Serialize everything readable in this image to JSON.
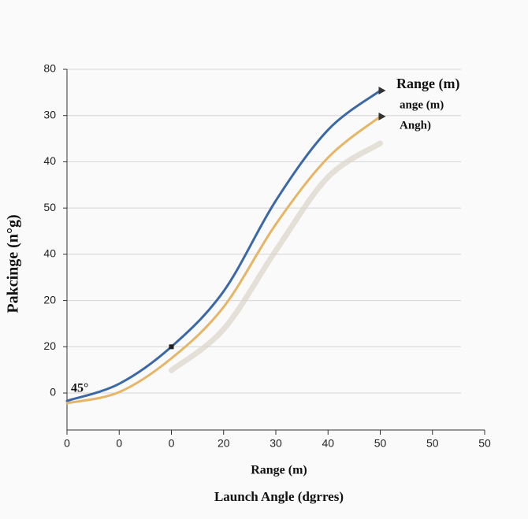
{
  "chart_data": {
    "type": "line",
    "y_label": "Pakcinge (n°g)",
    "x_label": "Range (m)",
    "subtitle": "Launch Angle (dgrres)",
    "annotation": "45°",
    "x": [
      0,
      1,
      2,
      3,
      4,
      5,
      6
    ],
    "xlim": [
      0,
      8
    ],
    "xticks": [
      {
        "value": 0,
        "label": "0"
      },
      {
        "value": 1,
        "label": "0"
      },
      {
        "value": 2,
        "label": "0"
      },
      {
        "value": 3,
        "label": "20"
      },
      {
        "value": 4,
        "label": "30"
      },
      {
        "value": 5,
        "label": "40"
      },
      {
        "value": 6,
        "label": "50"
      },
      {
        "value": 7,
        "label": "50"
      },
      {
        "value": 8,
        "label": "50"
      }
    ],
    "ylim": [
      -0.8,
      7
    ],
    "yticks": [
      {
        "value": 0,
        "label": "0"
      },
      {
        "value": 1,
        "label": "20"
      },
      {
        "value": 2,
        "label": "20"
      },
      {
        "value": 3,
        "label": "40"
      },
      {
        "value": 4,
        "label": "50"
      },
      {
        "value": 5,
        "label": "40"
      },
      {
        "value": 6,
        "label": "30"
      },
      {
        "value": 7,
        "label": "80"
      }
    ],
    "grid": true,
    "series": [
      {
        "name": "Range (m)",
        "color": "#3c68a6",
        "values": [
          -0.17,
          0.2,
          1.0,
          2.2,
          4.16,
          5.69,
          6.54
        ]
      },
      {
        "name": "ange (m)",
        "color": "#e6b566",
        "values": [
          -0.22,
          0.02,
          0.75,
          1.86,
          3.65,
          5.09,
          5.98
        ]
      },
      {
        "name": "Angh)",
        "color": "#dcd6cb",
        "values": [
          null,
          null,
          0.49,
          1.38,
          3.08,
          4.67,
          5.4
        ]
      }
    ]
  }
}
